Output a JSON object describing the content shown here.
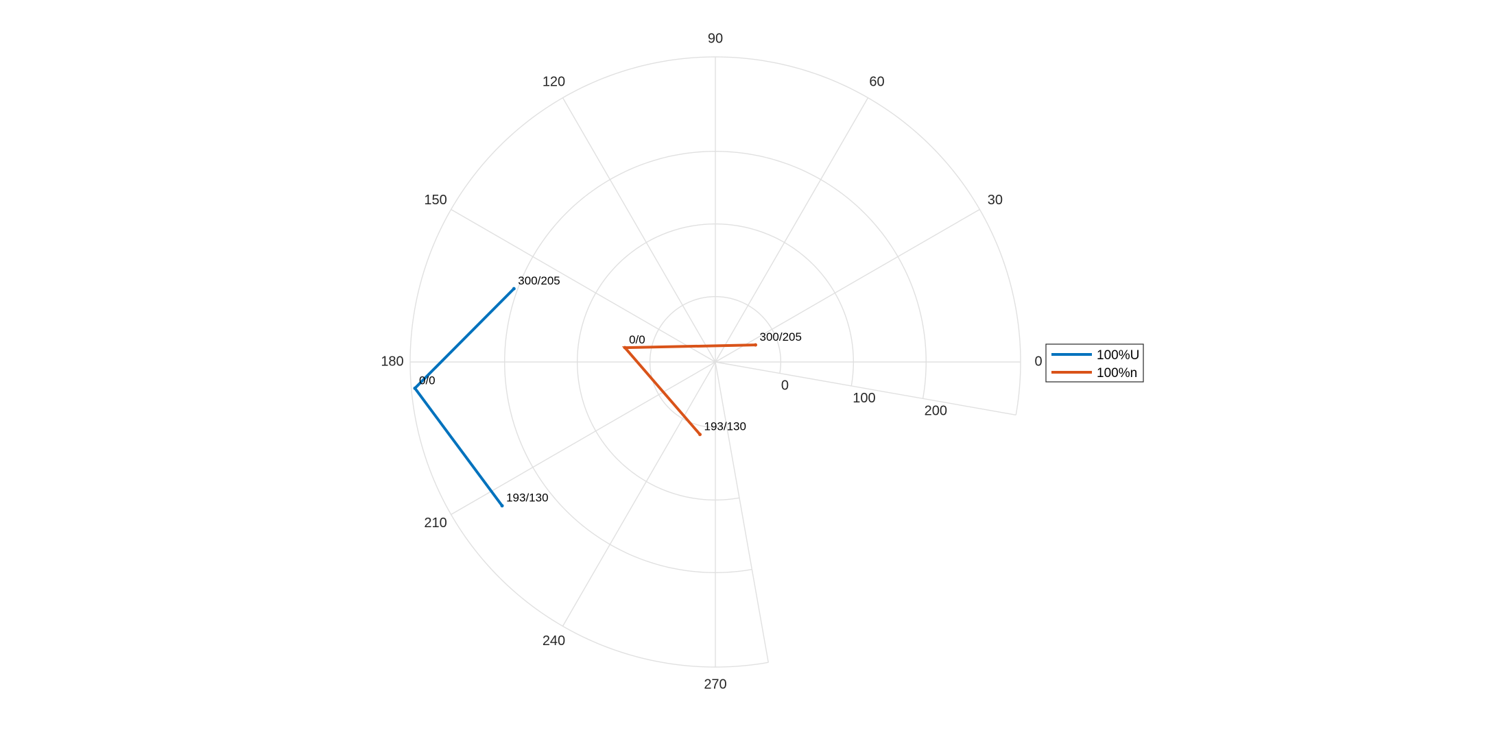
{
  "chart_data": {
    "type": "polar_line",
    "theta_ticks": [
      "0",
      "30",
      "60",
      "90",
      "120",
      "150",
      "180",
      "210",
      "240",
      "270"
    ],
    "r_ticks": [
      "0",
      "100",
      "200"
    ],
    "theta_range_deg": [
      -10,
      280
    ],
    "r_range": [
      -90,
      330
    ],
    "grid": true,
    "legend_position": "right",
    "series": [
      {
        "name": "100%U",
        "color": "#0072BD",
        "points": [
          {
            "label": "300/205",
            "theta_deg": 160,
            "r": 205
          },
          {
            "label": "0/0",
            "theta_deg": 185,
            "r": 325
          },
          {
            "label": "193/130",
            "theta_deg": 214,
            "r": 264
          }
        ]
      },
      {
        "name": "100%n",
        "color": "#D95319",
        "points": [
          {
            "label": "300/205",
            "theta_deg": 23,
            "r": -30
          },
          {
            "label": "0/0",
            "theta_deg": 171,
            "r": 36
          },
          {
            "label": "193/130",
            "theta_deg": 258,
            "r": 12
          }
        ]
      }
    ]
  }
}
